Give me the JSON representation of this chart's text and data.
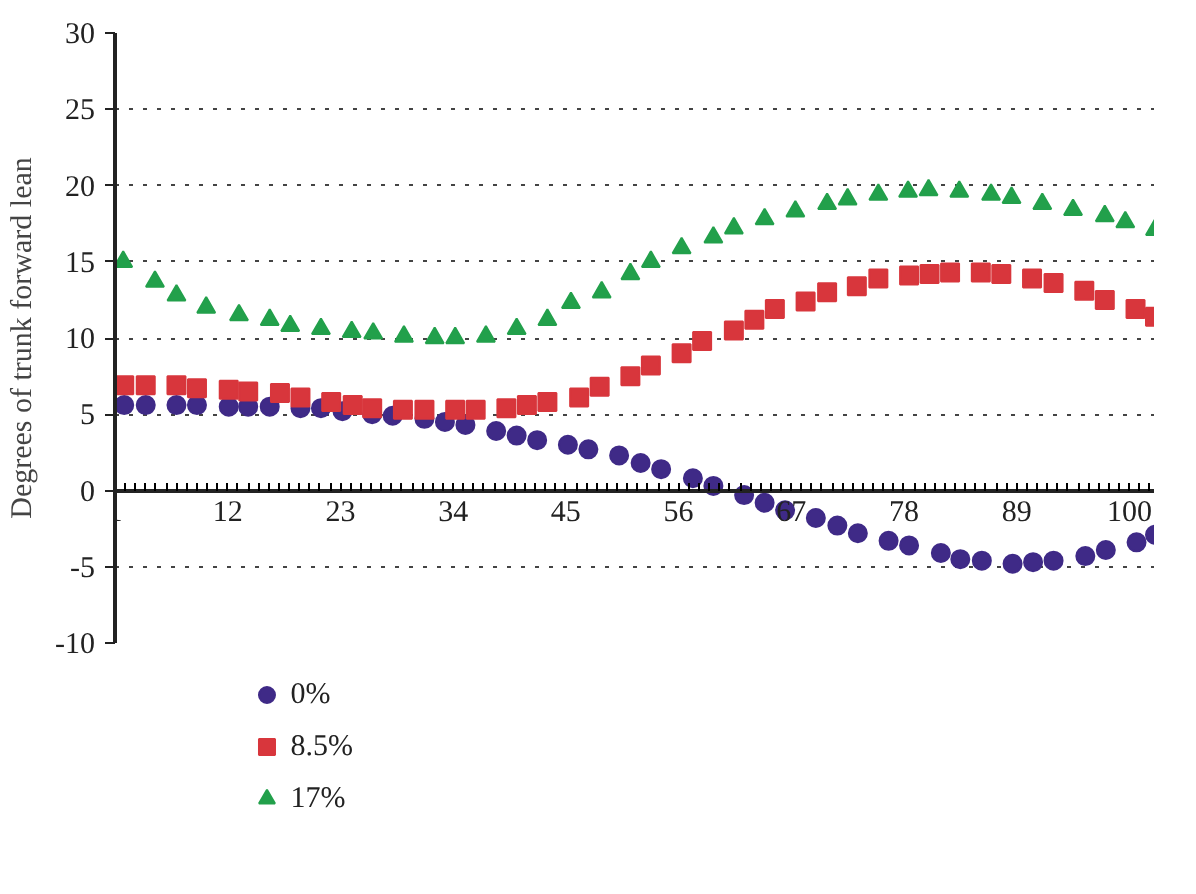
{
  "chart_data": {
    "type": "scatter",
    "ylabel": "Degrees of trunk forward lean",
    "xlim": [
      1,
      102.5
    ],
    "xticks": [
      1,
      12,
      23,
      34,
      45,
      56,
      67,
      78,
      89,
      100
    ],
    "ylim": [
      -10,
      30
    ],
    "yticks": [
      -10,
      -5,
      0,
      5,
      10,
      15,
      20,
      25,
      30
    ],
    "grid": "y",
    "legend": "bottom",
    "series": [
      {
        "name": "0%",
        "color": "#3f2a87",
        "marker": "circle",
        "x": [
          1.9,
          4,
          7,
          9,
          12.1,
          14,
          16.1,
          19.1,
          21.1,
          23.2,
          26.1,
          28.1,
          31.2,
          33.2,
          35.2,
          38.2,
          40.2,
          42.2,
          45.2,
          47.2,
          50.2,
          52.3,
          54.3,
          57.4,
          59.4,
          62.4,
          64.4,
          66.4,
          69.4,
          71.5,
          73.5,
          76.5,
          78.5,
          81.6,
          83.5,
          85.6,
          88.6,
          90.6,
          92.6,
          95.7,
          97.7,
          100.7,
          102.5
        ],
        "values": [
          5.6,
          5.6,
          5.6,
          5.6,
          5.5,
          5.5,
          5.5,
          5.4,
          5.4,
          5.2,
          5.0,
          4.9,
          4.7,
          4.5,
          4.3,
          3.9,
          3.6,
          3.3,
          3.0,
          2.7,
          2.3,
          1.8,
          1.4,
          0.8,
          0.3,
          -0.3,
          -0.8,
          -1.3,
          -1.8,
          -2.3,
          -2.8,
          -3.3,
          -3.6,
          -4.1,
          -4.5,
          -4.6,
          -4.8,
          -4.7,
          -4.6,
          -4.3,
          -3.9,
          -3.4,
          -2.9
        ]
      },
      {
        "name": "8.5%",
        "color": "#d8363c",
        "marker": "square",
        "x": [
          1.9,
          4,
          7,
          9,
          12.1,
          14,
          17.1,
          19.1,
          22.1,
          24.2,
          26.1,
          29.1,
          31.2,
          34.2,
          36.2,
          39.2,
          41.2,
          43.2,
          46.3,
          48.3,
          51.3,
          53.3,
          56.3,
          58.3,
          61.4,
          63.4,
          65.4,
          68.4,
          70.5,
          73.4,
          75.5,
          78.5,
          80.5,
          82.5,
          85.5,
          87.5,
          90.5,
          92.6,
          95.6,
          97.6,
          100.6,
          102.5
        ],
        "values": [
          6.9,
          6.9,
          6.9,
          6.7,
          6.6,
          6.5,
          6.4,
          6.1,
          5.8,
          5.6,
          5.4,
          5.3,
          5.3,
          5.3,
          5.3,
          5.4,
          5.6,
          5.8,
          6.1,
          6.8,
          7.5,
          8.2,
          9.0,
          9.8,
          10.5,
          11.2,
          11.9,
          12.4,
          13.0,
          13.4,
          13.9,
          14.1,
          14.2,
          14.3,
          14.3,
          14.2,
          13.9,
          13.6,
          13.1,
          12.5,
          11.9,
          11.4
        ]
      },
      {
        "name": "17%",
        "color": "#22a04b",
        "marker": "triangle",
        "x": [
          1.8,
          4.9,
          7,
          9.9,
          13.1,
          16.1,
          18.1,
          21.1,
          24.1,
          26.2,
          29.2,
          32.2,
          34.2,
          37.2,
          40.2,
          43.2,
          45.5,
          48.5,
          51.3,
          53.3,
          56.3,
          59.4,
          61.4,
          64.4,
          67.4,
          70.5,
          72.5,
          75.5,
          78.4,
          80.4,
          83.4,
          86.5,
          88.5,
          91.5,
          94.5,
          97.6,
          99.6,
          102.5
        ],
        "values": [
          15.0,
          13.7,
          12.8,
          12.0,
          11.5,
          11.2,
          10.8,
          10.6,
          10.4,
          10.3,
          10.1,
          10.0,
          10.0,
          10.1,
          10.6,
          11.2,
          12.3,
          13.0,
          14.2,
          15.0,
          15.9,
          16.6,
          17.2,
          17.8,
          18.3,
          18.8,
          19.1,
          19.4,
          19.6,
          19.7,
          19.6,
          19.4,
          19.2,
          18.8,
          18.4,
          18.0,
          17.6,
          17.1
        ]
      }
    ]
  }
}
